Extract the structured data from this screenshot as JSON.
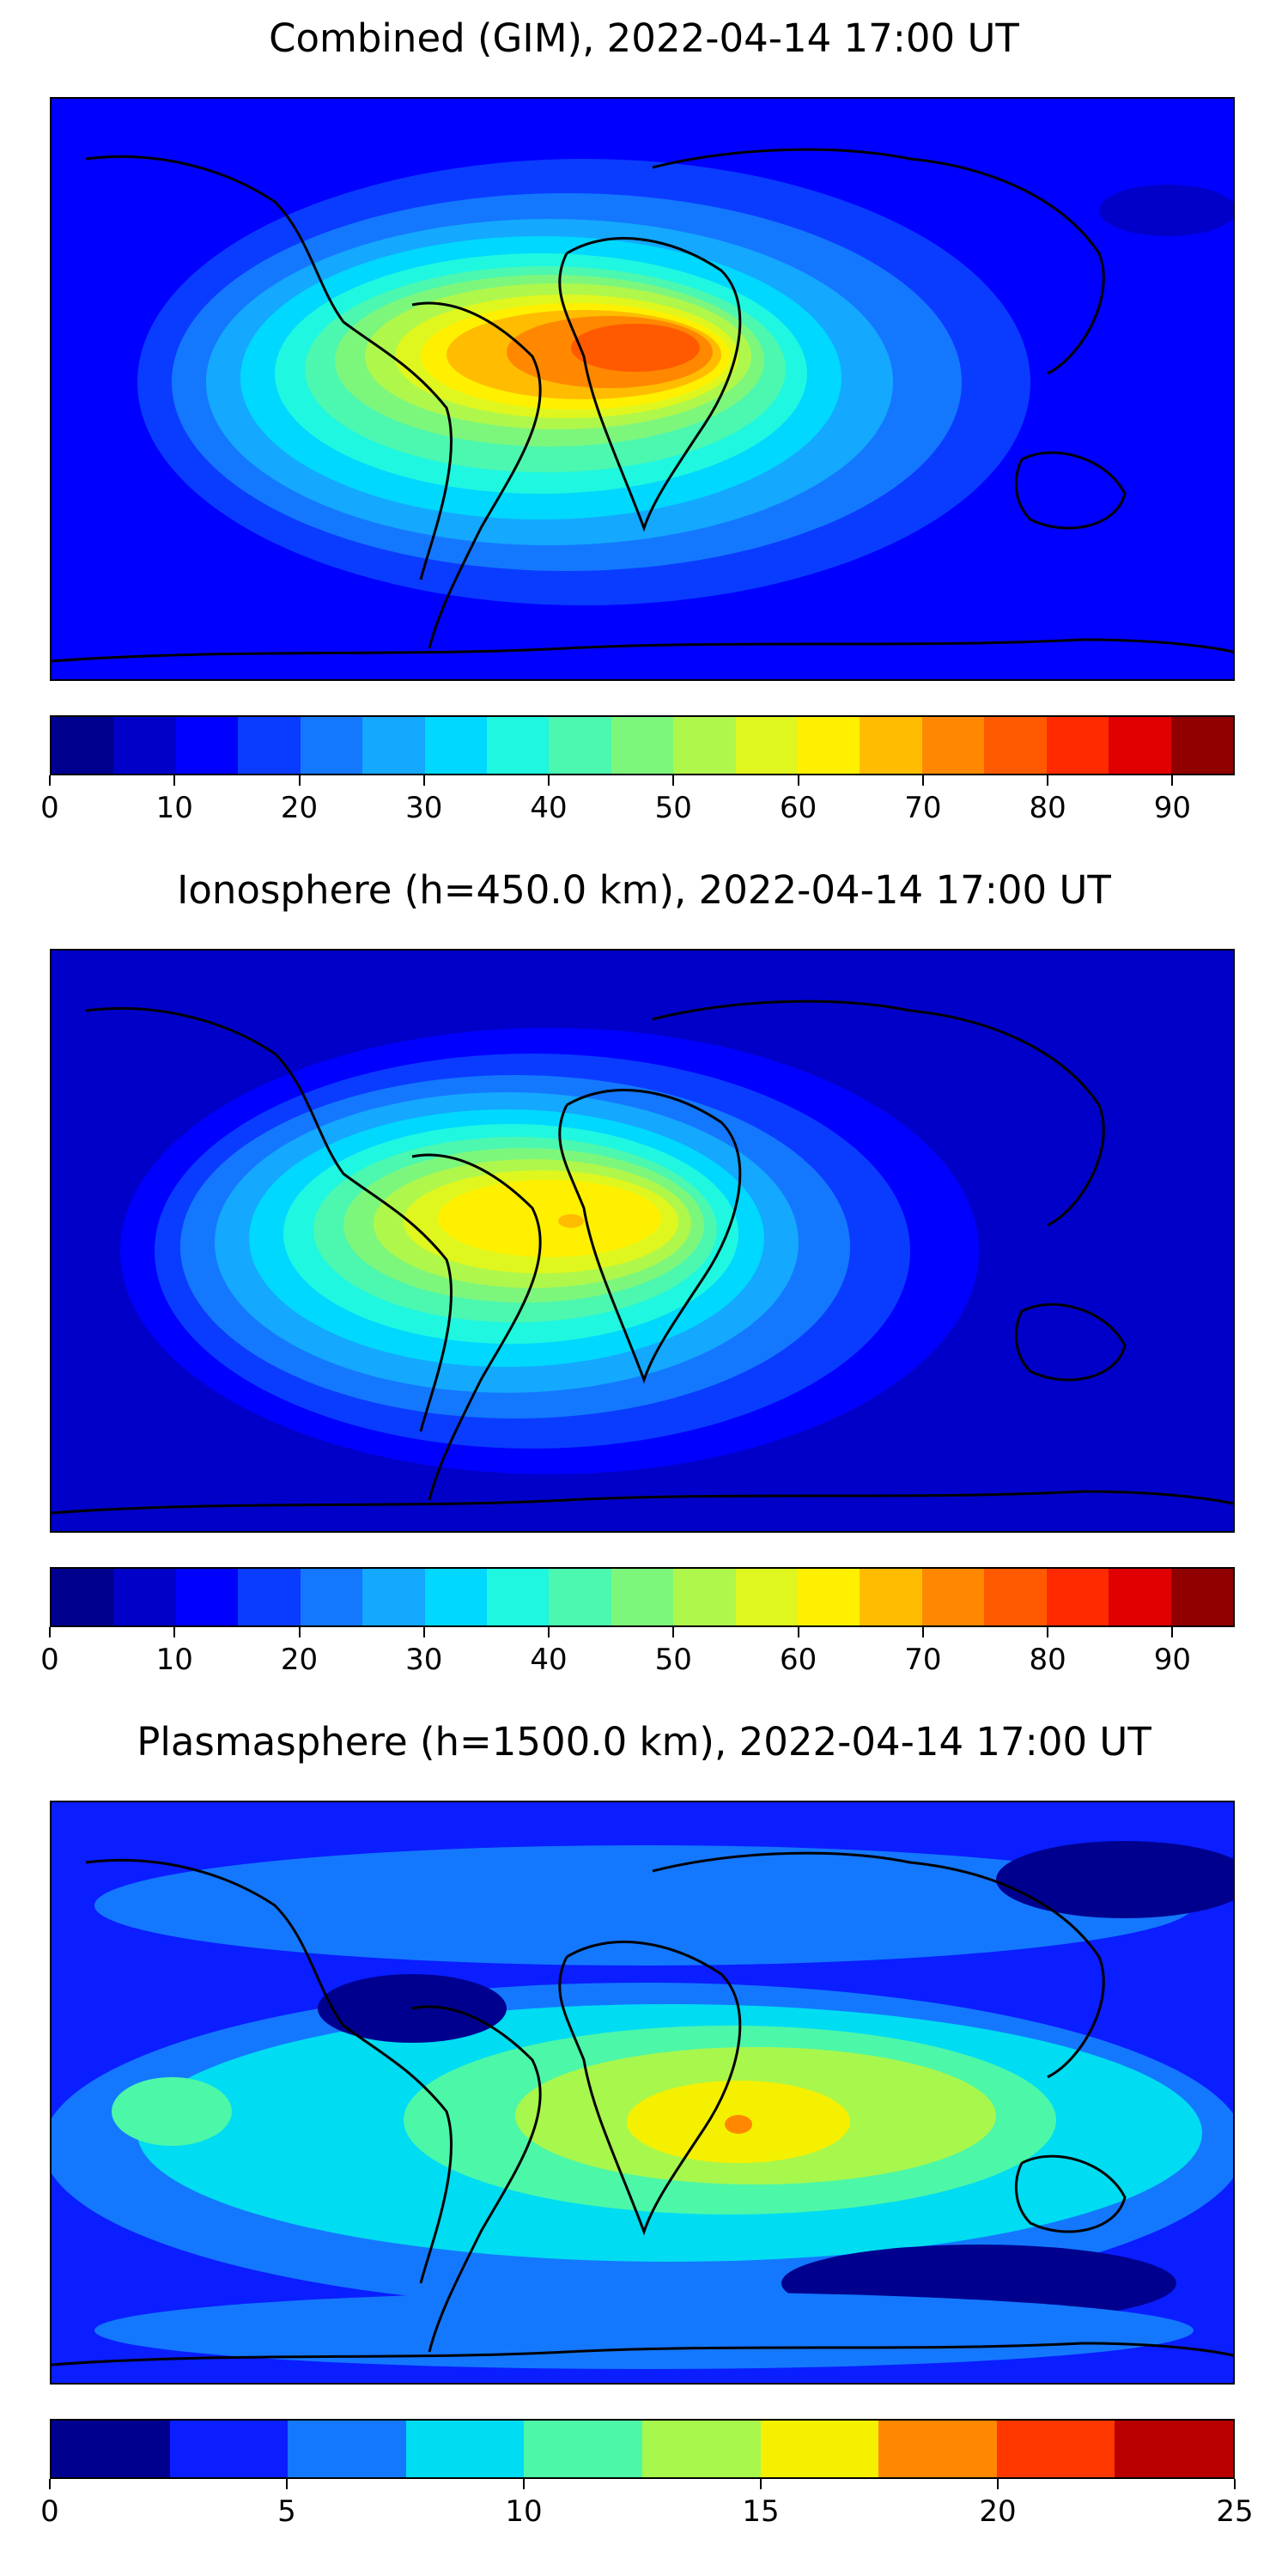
{
  "panels": [
    {
      "title": "Combined (GIM), 2022-04-14 17:00 UT",
      "colorbar": {
        "min": 0,
        "max": 95,
        "step": 5,
        "tick_labels": [
          "0",
          "10",
          "20",
          "30",
          "40",
          "50",
          "60",
          "70",
          "80",
          "90"
        ],
        "tick_values": [
          0,
          10,
          20,
          30,
          40,
          50,
          60,
          70,
          80,
          90
        ]
      }
    },
    {
      "title": "Ionosphere  (h=450.0 km), 2022-04-14 17:00 UT",
      "colorbar": {
        "min": 0,
        "max": 95,
        "step": 5,
        "tick_labels": [
          "0",
          "10",
          "20",
          "30",
          "40",
          "50",
          "60",
          "70",
          "80",
          "90"
        ],
        "tick_values": [
          0,
          10,
          20,
          30,
          40,
          50,
          60,
          70,
          80,
          90
        ]
      }
    },
    {
      "title": "Plasmasphere (h=1500.0 km), 2022-04-14 17:00 UT",
      "colorbar": {
        "min": 0,
        "max": 25,
        "step": 2.5,
        "tick_labels": [
          "0",
          "5",
          "10",
          "15",
          "20",
          "25"
        ],
        "tick_values": [
          0,
          5,
          10,
          15,
          20,
          25
        ]
      }
    }
  ],
  "colors": {
    "jet19": [
      "#00008f",
      "#0000c8",
      "#0000ff",
      "#0a3cff",
      "#1478ff",
      "#14a8ff",
      "#00d8ff",
      "#1ff7e0",
      "#4cf7b0",
      "#7cf77c",
      "#b0f74c",
      "#dff71e",
      "#fff000",
      "#ffbc00",
      "#ff8800",
      "#ff5a00",
      "#ff2a00",
      "#e00000",
      "#900000"
    ],
    "jet10": [
      "#00008f",
      "#0a1eff",
      "#1478ff",
      "#00dcf2",
      "#4cf7a8",
      "#a8f74c",
      "#f5f000",
      "#ff8800",
      "#ff3800",
      "#b80000"
    ]
  }
}
